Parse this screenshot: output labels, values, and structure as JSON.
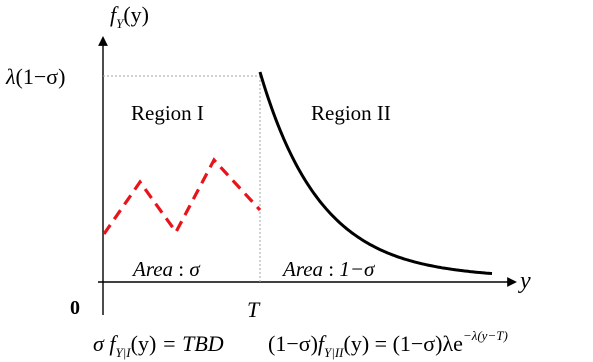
{
  "y_axis_label": {
    "func": "f",
    "sub": "Y",
    "arg": "(y)"
  },
  "x_axis_label": "y",
  "origin_label": "0",
  "t_label": "T",
  "y_tick_label": {
    "lambda": "λ",
    "rest": "(1−σ)"
  },
  "regions": {
    "left": "Region I",
    "right": "Region II"
  },
  "areas": {
    "left": {
      "word": "Area",
      "sep": " : ",
      "val": "σ"
    },
    "right": {
      "word": "Area",
      "sep": " : ",
      "val": "1−σ"
    }
  },
  "formulas": {
    "left": {
      "sigma": "σ ",
      "f": "f",
      "sub": "Y|I",
      "arg": "(y)",
      "rhs": " = TBD"
    },
    "right": {
      "prefix": "(1−σ)",
      "f": "f",
      "sub": "Y|II",
      "mid": "(y) = (1−σ)λe",
      "exp": "−λ(y−T)"
    }
  },
  "colors": {
    "axis": "#000000",
    "density_curve": "#000000",
    "dashed_curve": "#e8141c",
    "guide_lines": "#a6a6a6"
  }
}
